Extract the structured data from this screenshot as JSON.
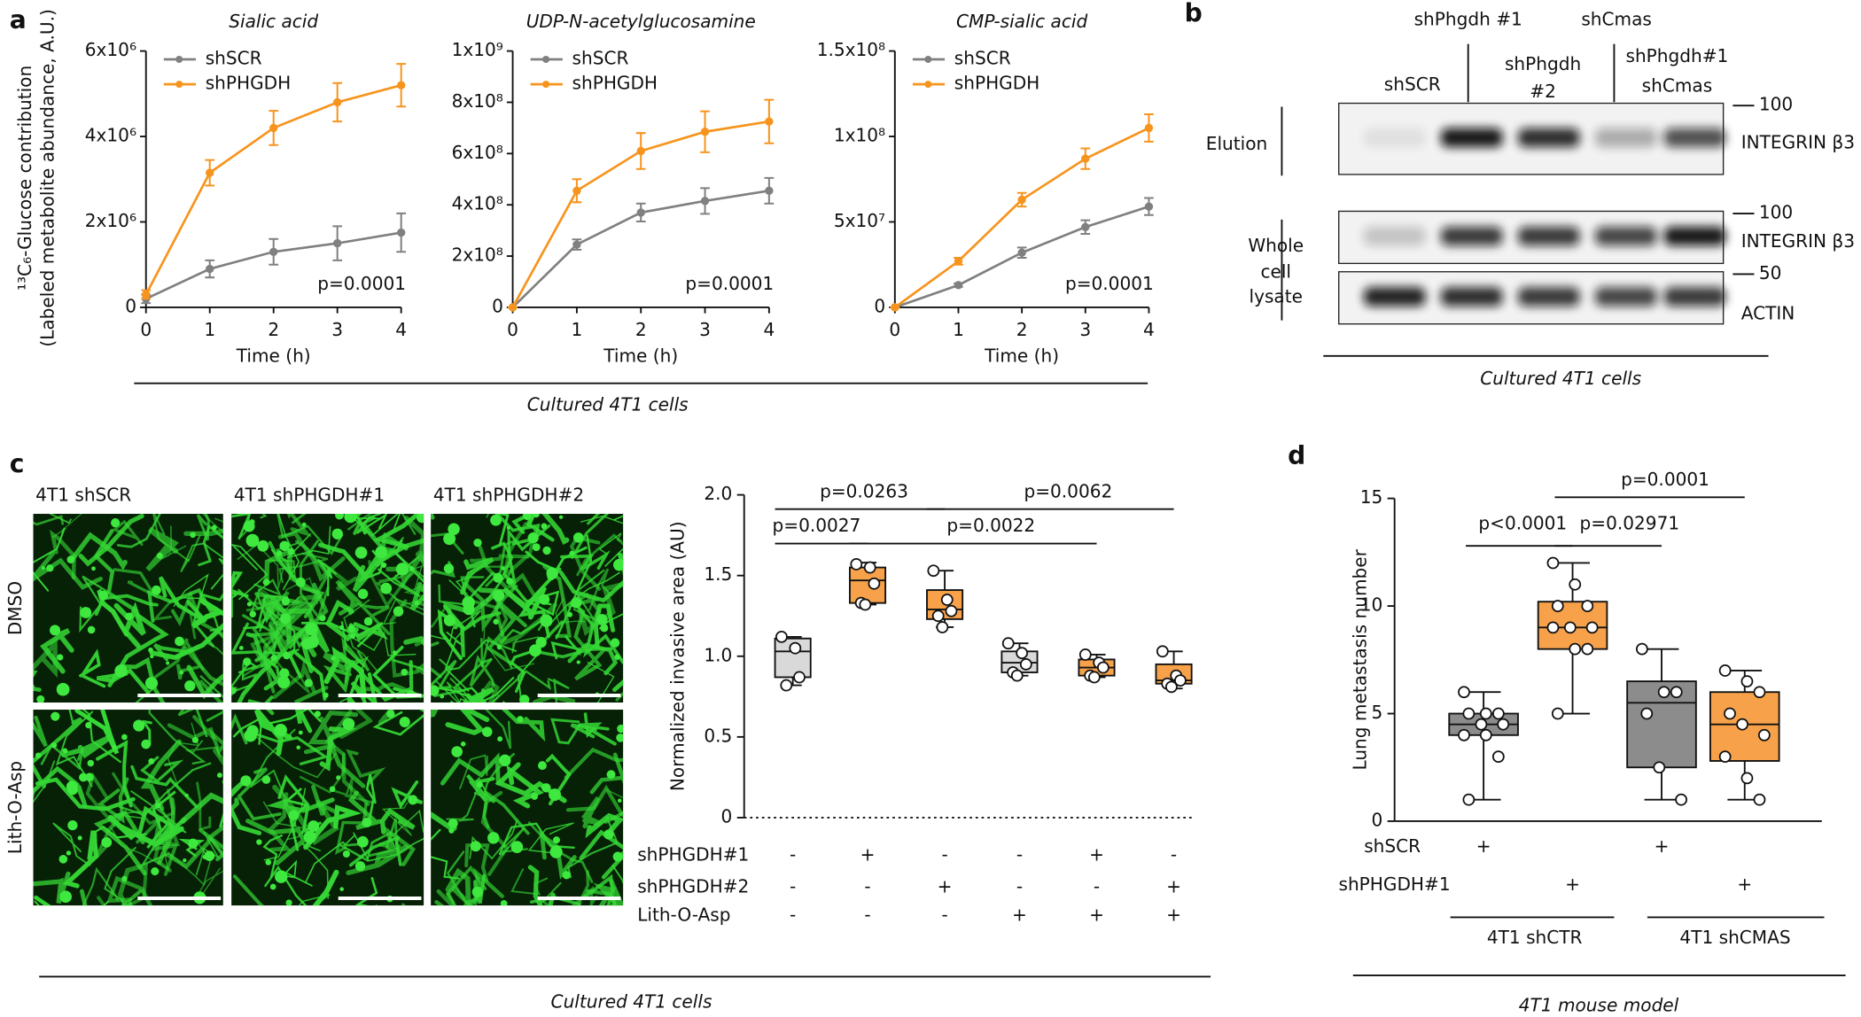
{
  "panel_labels": [
    "a",
    "b",
    "c",
    "d"
  ],
  "captions": {
    "a": "Cultured 4T1 cells",
    "b": "Cultured 4T1 cells",
    "c": "Cultured 4T1 cells",
    "d": "4T1 mouse model"
  },
  "blot": {
    "header": [
      "shPhgdh #1",
      "shCmas"
    ],
    "lanes": [
      [
        "shSCR"
      ],
      [
        "shPhgdh",
        "#2"
      ],
      [
        "shPhgdh#1",
        "shCmas"
      ]
    ],
    "rows": [
      [
        "Elution"
      ],
      [
        "Whole",
        "cell",
        "lysate"
      ]
    ],
    "markers": [
      "100",
      "100",
      "50"
    ],
    "proteins": [
      "INTEGRIN β3",
      "INTEGRIN β3",
      "ACTIN"
    ]
  },
  "micrographs": {
    "columns": [
      "4T1 shSCR",
      "4T1 shPHGDH#1",
      "4T1 shPHGDH#2"
    ],
    "rows": [
      "DMSO",
      "Lith-O-Asp"
    ]
  },
  "chart_data": [
    {
      "type": "line",
      "title": "Sialic acid",
      "x_label": "Time (h)",
      "y_label": [
        "¹³C₆-Glucose contribution",
        "(Labeled metabolite abundance, A.U.)"
      ],
      "annotation": "p=0.0001",
      "x": [
        0,
        1,
        2,
        3,
        4
      ],
      "xlim": [
        0,
        4
      ],
      "xticks": [
        0,
        1,
        2,
        3,
        4
      ],
      "ylim": [
        0,
        6000000
      ],
      "yticks": [
        0,
        {
          "value": 2000000,
          "label": "2x10⁶"
        },
        {
          "value": 4000000,
          "label": "4x10⁶"
        },
        {
          "value": 6000000,
          "label": "6x10⁶"
        }
      ],
      "series": [
        {
          "name": "shSCR",
          "color": "#808080",
          "values": [
            200000,
            900000,
            1300000,
            1500000,
            1750000
          ],
          "errors": [
            100000,
            200000,
            300000,
            400000,
            450000
          ]
        },
        {
          "name": "shPHGDH",
          "color": "#f7941d",
          "values": [
            300000,
            3150000,
            4200000,
            4800000,
            5200000
          ],
          "errors": [
            100000,
            300000,
            400000,
            450000,
            500000
          ]
        }
      ]
    },
    {
      "type": "line",
      "title": "UDP-N-acetylglucosamine",
      "x_label": "Time (h)",
      "annotation": "p=0.0001",
      "x": [
        0,
        1,
        2,
        3,
        4
      ],
      "xlim": [
        0,
        4
      ],
      "xticks": [
        0,
        1,
        2,
        3,
        4
      ],
      "ylim": [
        0,
        1000000000
      ],
      "yticks": [
        0,
        {
          "value": 200000000,
          "label": "2x10⁸"
        },
        {
          "value": 400000000,
          "label": "4x10⁸"
        },
        {
          "value": 600000000,
          "label": "6x10⁸"
        },
        {
          "value": 800000000,
          "label": "8x10⁸"
        },
        {
          "value": 1000000000,
          "label": "1x10⁹"
        }
      ],
      "series": [
        {
          "name": "shSCR",
          "color": "#808080",
          "values": [
            0,
            245000000,
            370000000,
            415000000,
            455000000
          ],
          "errors": [
            0,
            20000000,
            35000000,
            50000000,
            50000000
          ]
        },
        {
          "name": "shPHGDH",
          "color": "#f7941d",
          "values": [
            0,
            455000000,
            610000000,
            685000000,
            725000000
          ],
          "errors": [
            0,
            45000000,
            70000000,
            80000000,
            85000000
          ]
        }
      ]
    },
    {
      "type": "line",
      "title": "CMP-sialic acid",
      "x_label": "Time (h)",
      "annotation": "p=0.0001",
      "x": [
        0,
        1,
        2,
        3,
        4
      ],
      "xlim": [
        0,
        4
      ],
      "xticks": [
        0,
        1,
        2,
        3,
        4
      ],
      "ylim": [
        0,
        150000000
      ],
      "yticks": [
        0,
        {
          "value": 50000000,
          "label": "5x10⁷"
        },
        {
          "value": 100000000,
          "label": "1x10⁸"
        },
        {
          "value": 150000000,
          "label": "1.5x10⁸"
        }
      ],
      "series": [
        {
          "name": "shSCR",
          "color": "#808080",
          "values": [
            0,
            13000000,
            32000000,
            47000000,
            59000000
          ],
          "errors": [
            0,
            1000000,
            3000000,
            4000000,
            5000000
          ]
        },
        {
          "name": "shPHGDH",
          "color": "#f7941d",
          "values": [
            0,
            27000000,
            63000000,
            87000000,
            105000000
          ],
          "errors": [
            0,
            2000000,
            4000000,
            6000000,
            8000000
          ]
        }
      ]
    },
    {
      "type": "box",
      "y_label": "Normalized invasive area (AU)",
      "ylim": [
        0,
        2
      ],
      "yticks": [
        0,
        0.5,
        {
          "value": 1,
          "label": "1.0"
        },
        1.5,
        {
          "value": 2,
          "label": "2.0"
        }
      ],
      "comparisons": [
        "p=0.0027",
        "p=0.0263",
        "p=0.0022",
        "p=0.0062"
      ],
      "groups": [
        {
          "color": "#d9d9d9",
          "min": 0.82,
          "q1": 0.87,
          "median": 1.03,
          "q3": 1.11,
          "max": 1.12,
          "points": [
            1.12,
            1.05,
            0.87,
            0.82
          ]
        },
        {
          "color": "#f7a24a",
          "min": 1.32,
          "q1": 1.33,
          "median": 1.47,
          "q3": 1.55,
          "max": 1.58,
          "points": [
            1.57,
            1.55,
            1.45,
            1.33,
            1.32
          ]
        },
        {
          "color": "#f7a24a",
          "min": 1.18,
          "q1": 1.23,
          "median": 1.29,
          "q3": 1.41,
          "max": 1.53,
          "points": [
            1.53,
            1.35,
            1.28,
            1.25,
            1.18
          ]
        },
        {
          "color": "#d9d9d9",
          "min": 0.88,
          "q1": 0.9,
          "median": 0.96,
          "q3": 1.03,
          "max": 1.08,
          "points": [
            1.08,
            1.02,
            0.95,
            0.9,
            0.88
          ]
        },
        {
          "color": "#f7a24a",
          "min": 0.87,
          "q1": 0.88,
          "median": 0.93,
          "q3": 0.98,
          "max": 1.01,
          "points": [
            1.01,
            0.96,
            0.93,
            0.88,
            0.87
          ]
        },
        {
          "color": "#f7a24a",
          "min": 0.8,
          "q1": 0.83,
          "median": 0.85,
          "q3": 0.95,
          "max": 1.03,
          "points": [
            1.03,
            0.88,
            0.85,
            0.83,
            0.81
          ]
        }
      ],
      "conditions": [
        {
          "name": "shPHGDH#1",
          "values": [
            "-",
            "+",
            "-",
            "-",
            "+",
            "-"
          ]
        },
        {
          "name": "shPHGDH#2",
          "values": [
            "-",
            "-",
            "+",
            "-",
            "-",
            "+"
          ]
        },
        {
          "name": "Lith-O-Asp",
          "values": [
            "-",
            "-",
            "-",
            "+",
            "+",
            "+"
          ]
        }
      ]
    },
    {
      "type": "box",
      "y_label": "Lung metastasis number",
      "ylim": [
        0,
        15
      ],
      "yticks": [
        0,
        5,
        10,
        15
      ],
      "comparisons": [
        "p<0.0001",
        "p=0.02971",
        "p=0.0001"
      ],
      "groups": [
        {
          "color": "#8c8c8c",
          "min": 1,
          "q1": 4,
          "median": 4.5,
          "q3": 5,
          "max": 6,
          "points": [
            6,
            5,
            5,
            5,
            4.5,
            4.5,
            4,
            4,
            3,
            1
          ]
        },
        {
          "color": "#f7a24a",
          "min": 5,
          "q1": 8,
          "median": 9,
          "q3": 10.2,
          "max": 12,
          "points": [
            12,
            11,
            10,
            10,
            9,
            9,
            9,
            8,
            8,
            5
          ]
        },
        {
          "color": "#8c8c8c",
          "min": 1,
          "q1": 2.5,
          "median": 5.5,
          "q3": 6.5,
          "max": 8,
          "points": [
            8,
            6,
            6,
            5,
            2.5,
            1
          ]
        },
        {
          "color": "#f7a24a",
          "min": 1,
          "q1": 2.8,
          "median": 4.5,
          "q3": 6,
          "max": 7,
          "points": [
            7,
            6.5,
            6,
            5,
            4.5,
            4,
            3,
            2,
            1
          ]
        }
      ],
      "conditions": [
        {
          "name": "shSCR",
          "values": [
            "+",
            null,
            "+",
            null
          ]
        },
        {
          "name": "shPHGDH#1",
          "values": [
            null,
            "+",
            null,
            "+"
          ]
        }
      ],
      "group_labels": [
        "4T1 shCTR",
        "4T1 shCMAS"
      ]
    }
  ]
}
